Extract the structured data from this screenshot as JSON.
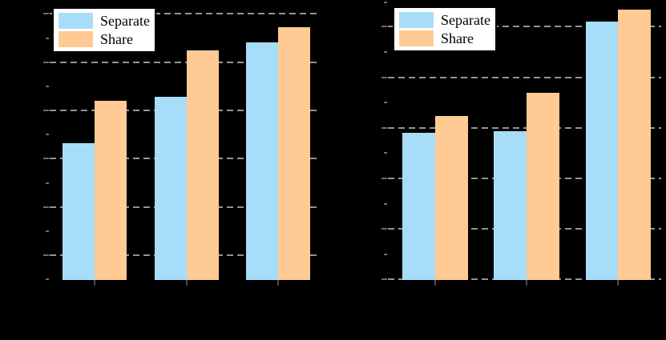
{
  "figure": {
    "background": "#000000",
    "note": "axis tick labels and axis titles are not visible in the screenshot (rendered black on black)"
  },
  "colors": {
    "separate_bar": "#A8DDFA",
    "share_bar": "#FFCA94",
    "gridline": "#949494",
    "y_tick": "#6e6e6e",
    "x_tick": "#4d4d4d",
    "legend_background": "#FFFFFF",
    "legend_border": "#000000",
    "legend_text": "#000000"
  },
  "chart_data": [
    {
      "type": "bar",
      "panel": "left",
      "title": "",
      "xlabel": "",
      "ylabel": "",
      "categories": [
        "",
        "",
        ""
      ],
      "series": [
        {
          "name": "Separate",
          "color": "#A8DDFA",
          "values": [
            0.489,
            0.654,
            0.849
          ]
        },
        {
          "name": "Share",
          "color": "#FFCA94",
          "values": [
            0.64,
            0.82,
            0.902
          ]
        }
      ],
      "value_units": "fraction of plot height (numeric y-axis labels not visible in screenshot)",
      "grid": "dashed horizontal, behind bars",
      "y_axis": {
        "major_ticks_rel": [
          0.951,
          0.778,
          0.605,
          0.433,
          0.26,
          0.088
        ],
        "minor_ticks_rel": [
          0.864,
          0.691,
          0.519,
          0.346,
          0.174,
          0.004
        ]
      },
      "category_centers_rel": [
        0.166,
        0.508,
        0.847
      ],
      "bar_width_rel": 0.12,
      "legend": {
        "position": "upper-left",
        "labels": [
          "Separate",
          "Share"
        ]
      }
    },
    {
      "type": "bar",
      "panel": "right",
      "title": "",
      "xlabel": "",
      "ylabel": "",
      "categories": [
        "",
        "",
        ""
      ],
      "series": [
        {
          "name": "Separate",
          "color": "#A8DDFA",
          "values": [
            0.527,
            0.531,
            0.922
          ]
        },
        {
          "name": "Share",
          "color": "#FFCA94",
          "values": [
            0.586,
            0.669,
            0.967
          ]
        }
      ],
      "value_units": "fraction of plot height (numeric y-axis labels not visible in screenshot)",
      "grid": "dashed horizontal, behind bars",
      "y_axis": {
        "major_ticks_rel": [
          0.906,
          0.724,
          0.543,
          0.363,
          0.182,
          0.002
        ],
        "minor_ticks_rel": [
          0.992,
          0.814,
          0.633,
          0.453,
          0.271,
          0.091
        ]
      },
      "category_centers_rel": [
        0.174,
        0.508,
        0.843
      ],
      "bar_width_rel": 0.12,
      "legend": {
        "position": "upper-left",
        "labels": [
          "Separate",
          "Share"
        ]
      }
    }
  ]
}
